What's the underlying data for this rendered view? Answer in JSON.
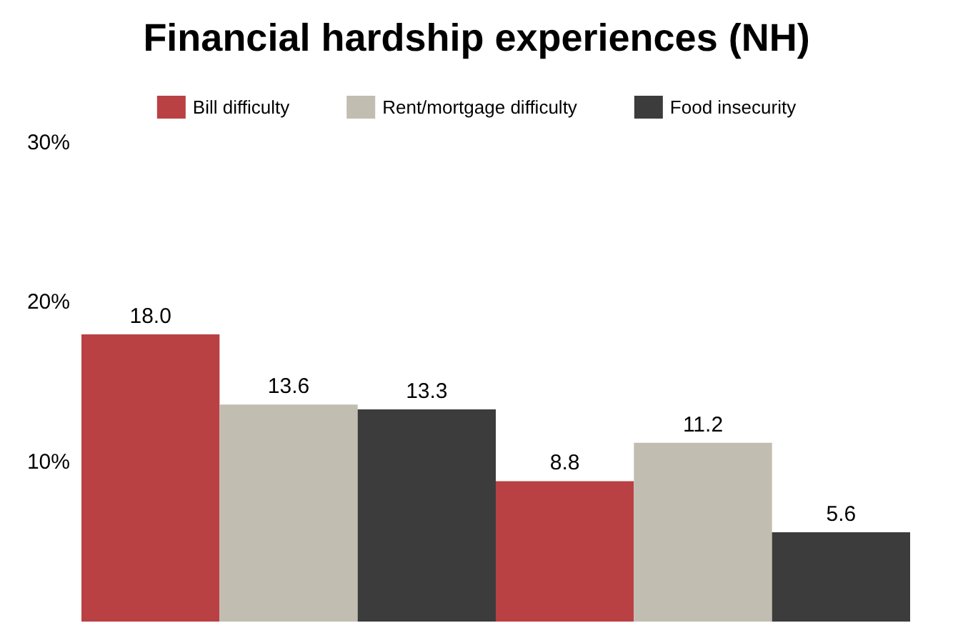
{
  "chart_data": {
    "type": "bar",
    "title": "Financial hardship experiences (NH)",
    "categories": [
      null,
      null
    ],
    "series": [
      {
        "name": "Bill difficulty",
        "color": "#b94144",
        "values": [
          18.0,
          8.8
        ],
        "value_labels": [
          "18.0",
          "8.8"
        ]
      },
      {
        "name": "Rent/mortgage difficulty",
        "color": "#c1bdb1",
        "values": [
          13.6,
          11.2
        ],
        "value_labels": [
          "13.6",
          "11.2"
        ]
      },
      {
        "name": "Food insecurity",
        "color": "#3c3c3c",
        "values": [
          13.3,
          5.6
        ],
        "value_labels": [
          "13.3",
          "5.6"
        ]
      }
    ],
    "ylim": [
      0,
      30
    ],
    "yticks": [
      {
        "value": 10,
        "label": "10%"
      },
      {
        "value": 20,
        "label": "20%"
      },
      {
        "value": 30,
        "label": "30%"
      }
    ],
    "grid": false,
    "legend": "top"
  }
}
